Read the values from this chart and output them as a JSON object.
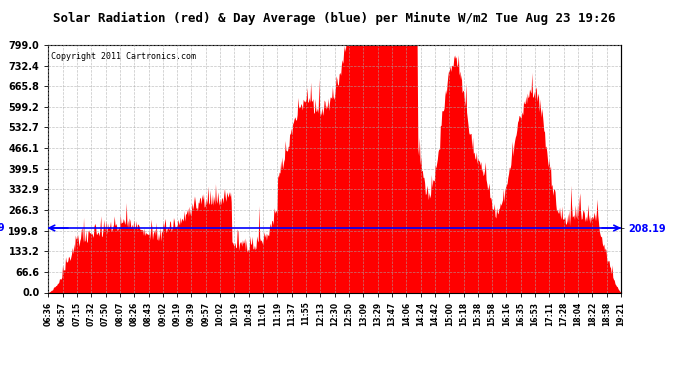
{
  "title": "Solar Radiation (red) & Day Average (blue) per Minute W/m2 Tue Aug 23 19:26",
  "copyright": "Copyright 2011 Cartronics.com",
  "ymax": 799.0,
  "ymin": 0.0,
  "yticks": [
    0.0,
    66.6,
    133.2,
    199.8,
    266.3,
    332.9,
    399.5,
    466.1,
    532.7,
    599.2,
    665.8,
    732.4,
    799.0
  ],
  "day_average": 208.19,
  "bar_color": "#FF0000",
  "avg_line_color": "#0000FF",
  "background_color": "#FFFFFF",
  "grid_color": "#AAAAAA",
  "title_fontsize": 9,
  "copyright_fontsize": 6,
  "tick_fontsize": 7,
  "xtick_labels": [
    "06:36",
    "06:57",
    "07:15",
    "07:32",
    "07:50",
    "08:07",
    "08:26",
    "08:43",
    "09:02",
    "09:19",
    "09:39",
    "09:57",
    "10:02",
    "10:19",
    "10:43",
    "11:01",
    "11:19",
    "11:37",
    "11:55",
    "12:13",
    "12:30",
    "12:50",
    "13:09",
    "13:29",
    "13:47",
    "14:06",
    "14:24",
    "14:42",
    "15:00",
    "15:18",
    "15:38",
    "15:58",
    "16:16",
    "16:35",
    "16:53",
    "17:11",
    "17:28",
    "18:04",
    "18:22",
    "18:58",
    "19:21"
  ],
  "figsize": [
    6.9,
    3.75
  ],
  "dpi": 100
}
